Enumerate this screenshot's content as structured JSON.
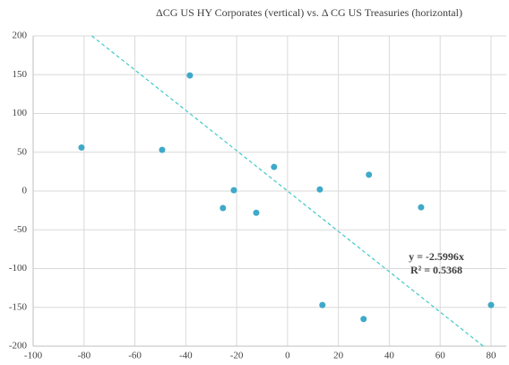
{
  "chart_data": {
    "type": "scatter",
    "title": "ΔCG US HY Corporates (vertical) vs. Δ CG US Treasuries (horizontal)",
    "series": [
      {
        "name": "ΔCG",
        "color": "#3fa9c9",
        "x": [
          -81,
          -49.3,
          -38.4,
          -5.3,
          -21.1,
          -25.4,
          -12.3,
          12.7,
          32,
          52.5,
          13.7,
          29.9,
          80
        ],
        "values": [
          56,
          53,
          149,
          31,
          1,
          -22,
          -28,
          2,
          21,
          -21,
          -147,
          -165,
          -147
        ]
      }
    ],
    "trendline": {
      "slope": -2.5996,
      "color": "#3fc9c9",
      "equation": "y = -2.5996x",
      "r2": "R² = 0.5368"
    },
    "xlim": [
      -100,
      86
    ],
    "xticks": [
      -100,
      -80,
      -60,
      -40,
      -20,
      0,
      20,
      40,
      60,
      80
    ],
    "ylim": [
      -200,
      200
    ],
    "yticks": [
      -200,
      -150,
      -100,
      -50,
      0,
      50,
      100,
      150,
      200
    ],
    "grid": true
  }
}
